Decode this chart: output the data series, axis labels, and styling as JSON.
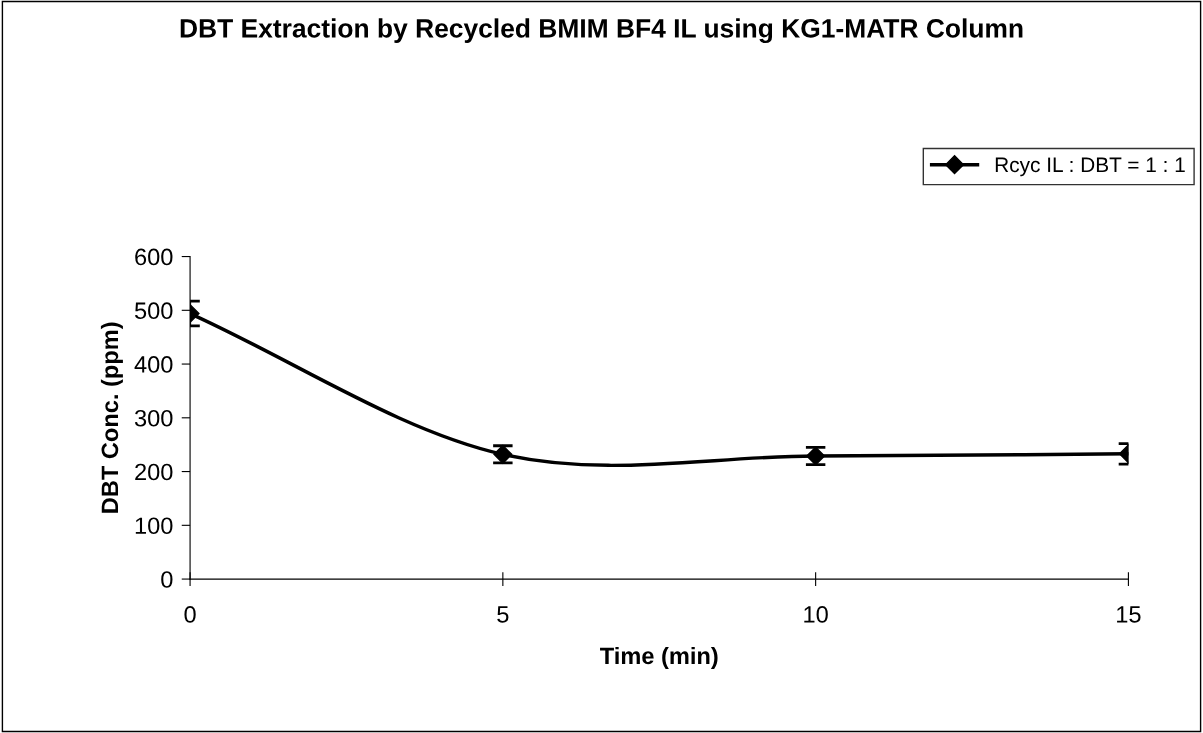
{
  "chart_data": {
    "type": "line",
    "title": "DBT Extraction by Recycled BMIM BF4 IL using KG1-MATR Column",
    "xlabel": "Time (min)",
    "ylabel": "DBT Conc. (ppm)",
    "x": [
      0,
      5,
      10,
      15
    ],
    "series": [
      {
        "name": "Rcyc IL : DBT = 1 : 1",
        "color": "#000000",
        "values": [
          494,
          232,
          229,
          233
        ],
        "errors": [
          23,
          16,
          16,
          19
        ]
      }
    ],
    "xlim": [
      0,
      15
    ],
    "xticks": [
      0,
      5,
      10,
      15
    ],
    "ylim": [
      0,
      600
    ],
    "yticks": [
      0,
      100,
      200,
      300,
      400,
      500,
      600
    ],
    "marker": "diamond",
    "line_style": "solid",
    "legend": "top right",
    "grid": false
  }
}
